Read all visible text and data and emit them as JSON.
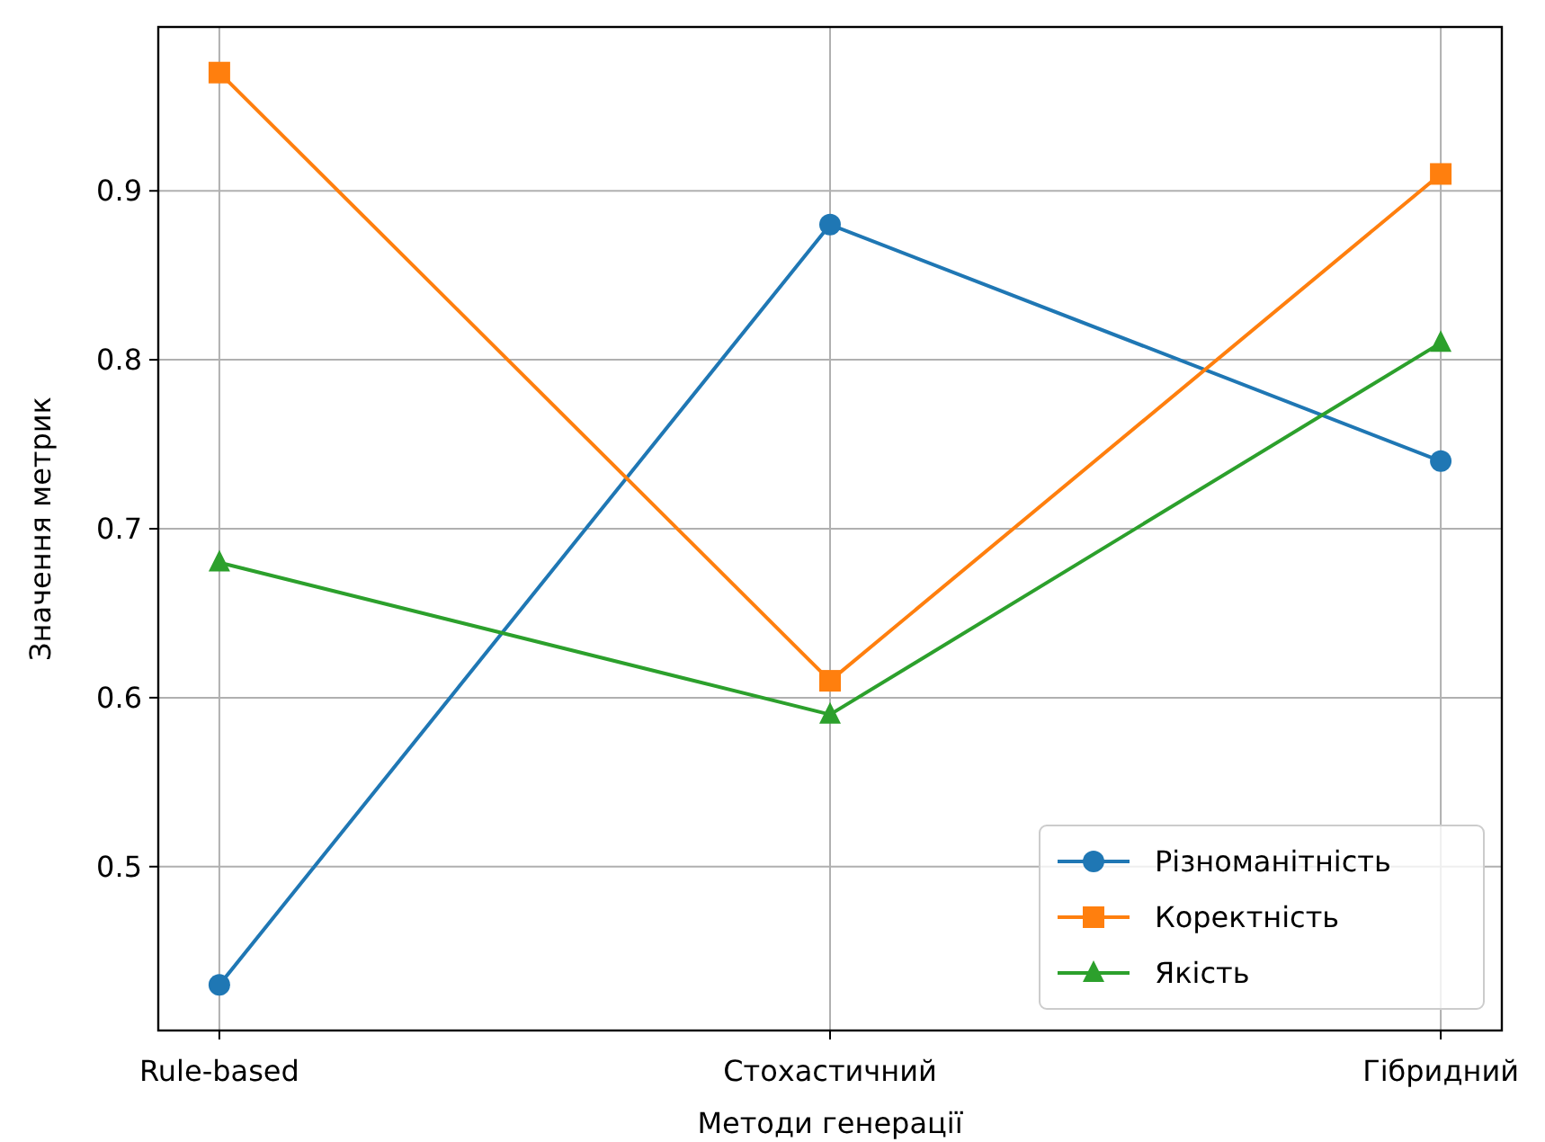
{
  "chart_data": {
    "type": "line",
    "xlabel": "Методи генерації",
    "ylabel": "Значення метрик",
    "categories": [
      "Rule-based",
      "Стохастичний",
      "Гібридний"
    ],
    "series": [
      {
        "name": "Різноманітність",
        "color": "#1f77b4",
        "marker": "circle",
        "values": [
          0.43,
          0.88,
          0.74
        ]
      },
      {
        "name": "Коректність",
        "color": "#ff7f0e",
        "marker": "square",
        "values": [
          0.97,
          0.61,
          0.91
        ]
      },
      {
        "name": "Якість",
        "color": "#2ca02c",
        "marker": "triangle",
        "values": [
          0.68,
          0.59,
          0.81
        ]
      }
    ],
    "ylim": [
      0.403,
      0.997
    ],
    "yticks": [
      0.5,
      0.6,
      0.7,
      0.8,
      0.9
    ],
    "grid": true,
    "legend": "bottom right",
    "line_style": "solid"
  }
}
